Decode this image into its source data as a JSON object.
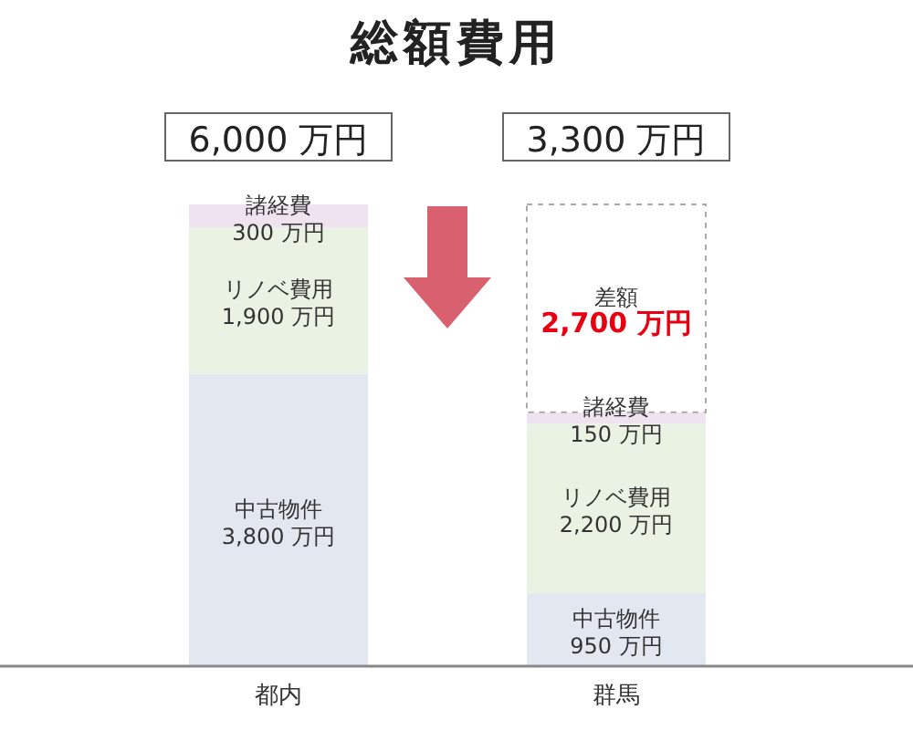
{
  "chart_data": {
    "type": "bar",
    "title": "総額費用",
    "stacked": true,
    "categories": [
      "都内",
      "群馬"
    ],
    "ylim": [
      0,
      6000
    ],
    "tick_labels": "x",
    "annotations": [
      "6,000 万円",
      "3,300 万円"
    ],
    "series": [
      {
        "name": "中古物件",
        "color": "#e3e8f0",
        "values": [
          3800,
          950
        ],
        "value_labels": [
          "3,800 万円",
          "950 万円"
        ]
      },
      {
        "name": "リノベ費用",
        "color": "#eaf2e3",
        "values": [
          1900,
          2200
        ],
        "value_labels": [
          "1,900 万円",
          "2,200 万円"
        ]
      },
      {
        "name": "諸経費",
        "color": "#efe3f0",
        "values": [
          300,
          150
        ],
        "value_labels": [
          "300 万円",
          "150 万円"
        ]
      },
      {
        "name": "差額",
        "color": "#ffffff",
        "line_style": "dashed",
        "values": [
          null,
          2700
        ],
        "value_labels": [
          null,
          "2,700 万円"
        ]
      }
    ]
  }
}
